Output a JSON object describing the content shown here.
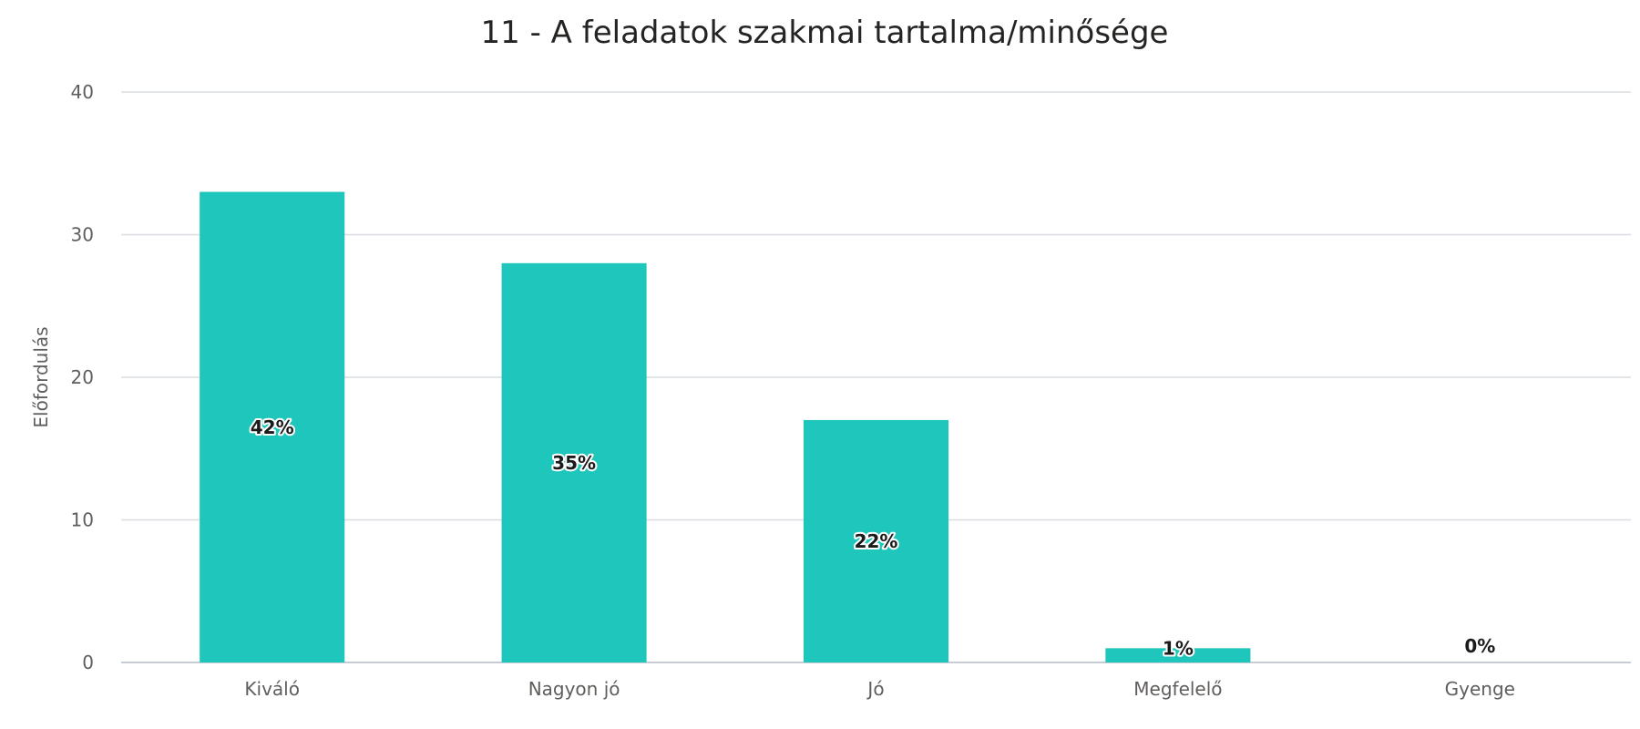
{
  "chart_data": {
    "type": "bar",
    "title": "11 - A feladatok szakmai tartalma/minősége",
    "xlabel": "",
    "ylabel": "Előfordulás",
    "categories": [
      "Kiváló",
      "Nagyon jó",
      "Jó",
      "Megfelelő",
      "Gyenge"
    ],
    "values": [
      33,
      28,
      17,
      1,
      0
    ],
    "data_labels": [
      "42%",
      "35%",
      "22%",
      "1%",
      "0%"
    ],
    "yticks": [
      0,
      10,
      20,
      30,
      40
    ],
    "ylim": [
      0,
      40
    ],
    "grid": true,
    "legend": "none",
    "color": "#1fc6bb"
  }
}
